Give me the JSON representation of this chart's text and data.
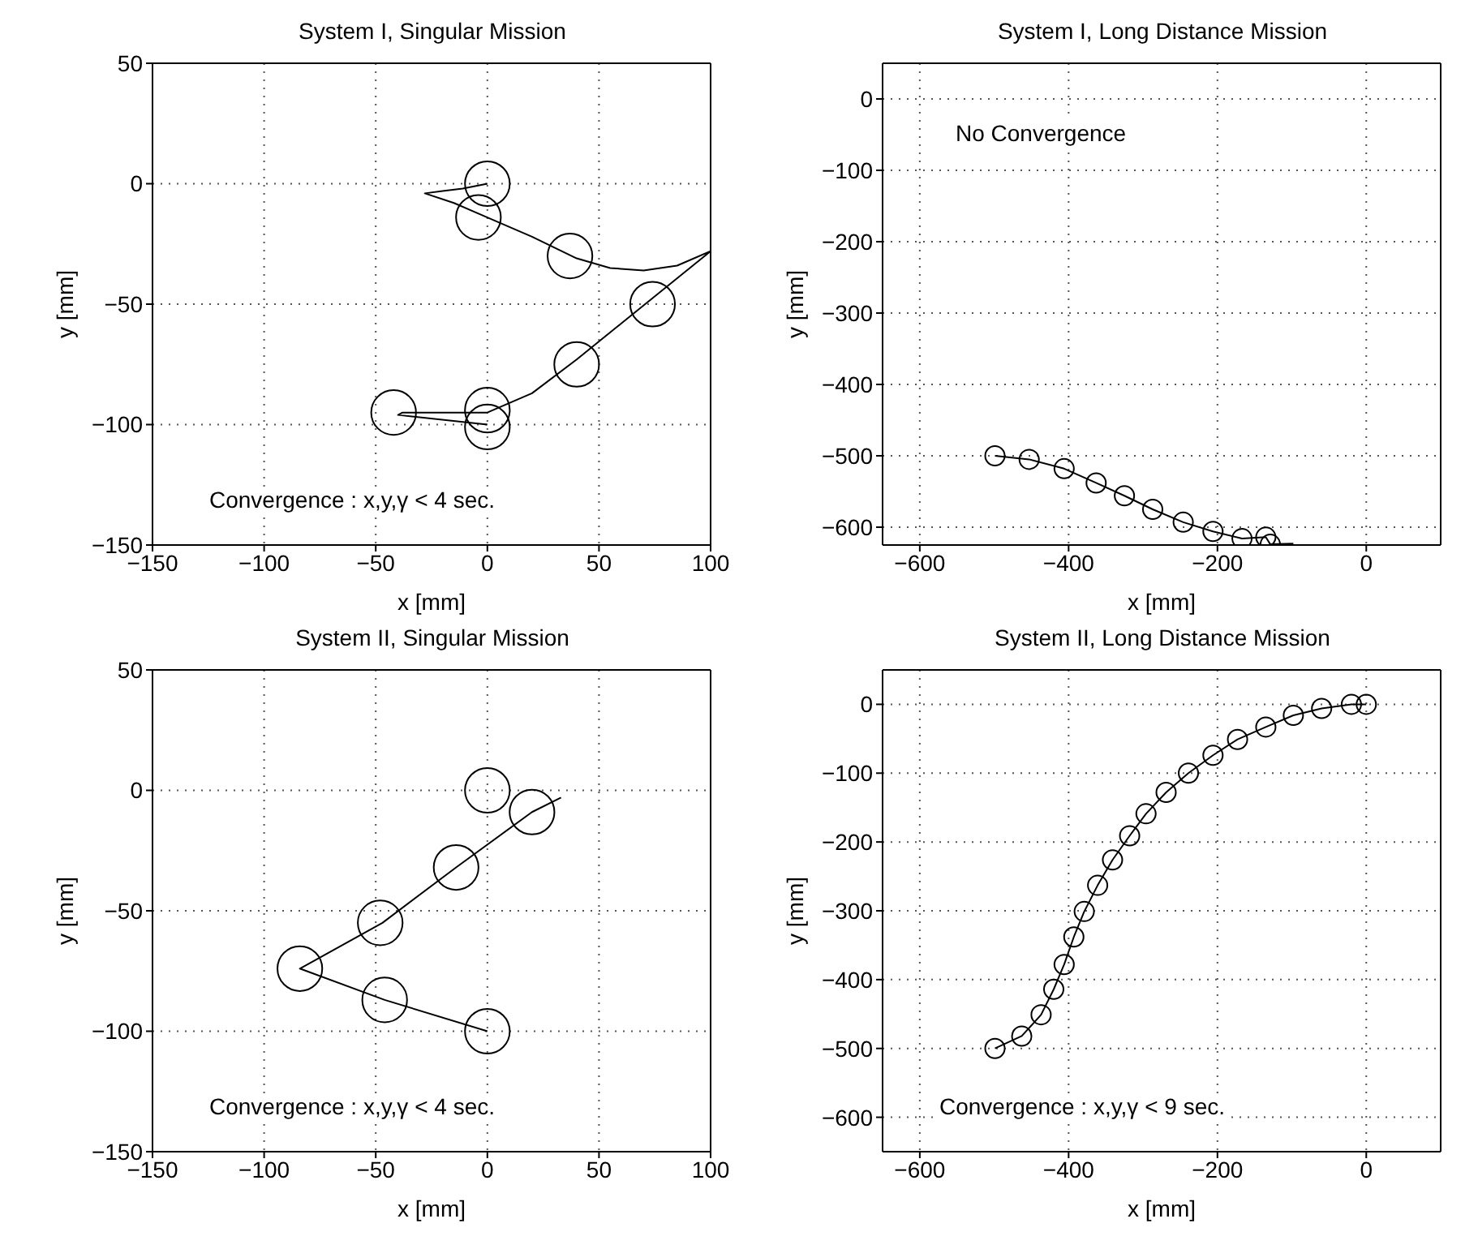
{
  "chart_data": [
    {
      "type": "line",
      "title": "System I, Singular Mission",
      "xlabel": "x [mm]",
      "ylabel": "y [mm]",
      "xlim": [
        -150,
        100
      ],
      "xticks": [
        -150,
        -100,
        -50,
        0,
        50,
        100
      ],
      "ylim": [
        -150,
        50
      ],
      "yticks": [
        -150,
        -100,
        -50,
        0,
        50
      ],
      "grid": true,
      "line_style": "solid",
      "annotations": [
        "Convergence : x,y,γ < 4 sec."
      ],
      "series": [
        {
          "marker": "none",
          "color": "#000000",
          "x": [
            0,
            -40,
            -38,
            0,
            20,
            40,
            60,
            80,
            100,
            85,
            70,
            55,
            40,
            20,
            0,
            -15,
            -28,
            -20,
            -11,
            0
          ],
          "values": [
            -100,
            -96,
            -95,
            -95,
            -87,
            -73,
            -58,
            -43,
            -28,
            -34,
            -36,
            -35,
            -31,
            -22,
            -14,
            -8,
            -4,
            -3,
            -2,
            0
          ]
        },
        {
          "type": "scatter",
          "marker": "circle",
          "color": "#000000",
          "x": [
            0,
            -4,
            37,
            74,
            40,
            0,
            0,
            -42
          ],
          "values": [
            0,
            -14,
            -30,
            -50,
            -75,
            -94,
            -101,
            -95
          ]
        }
      ]
    },
    {
      "type": "line",
      "title": "System I, Long Distance Mission",
      "xlabel": "x [mm]",
      "ylabel": "y [mm]",
      "xlim": [
        -650,
        100
      ],
      "xticks": [
        -600,
        -400,
        -200,
        0
      ],
      "ylim": [
        -625,
        50
      ],
      "yticks": [
        -600,
        -500,
        -400,
        -300,
        -200,
        -100,
        0
      ],
      "grid": true,
      "line_style": "solid",
      "annotations": [
        "No Convergence"
      ],
      "series": [
        {
          "marker": "none",
          "color": "#000000",
          "x": [
            -499,
            -453,
            -406,
            -363,
            -325,
            -287,
            -246,
            -206,
            -167,
            -135,
            -129,
            -98
          ],
          "values": [
            -500,
            -505,
            -518,
            -538,
            -556,
            -575,
            -593,
            -606,
            -616,
            -614,
            -624,
            -623
          ]
        },
        {
          "type": "scatter",
          "marker": "circle",
          "color": "#000000",
          "x": [
            -499,
            -453,
            -406,
            -363,
            -325,
            -287,
            -246,
            -206,
            -167,
            -135,
            -129
          ],
          "values": [
            -500,
            -505,
            -518,
            -538,
            -556,
            -575,
            -593,
            -606,
            -616,
            -614,
            -624
          ]
        }
      ]
    },
    {
      "type": "line",
      "title": "System II, Singular Mission",
      "xlabel": "x [mm]",
      "ylabel": "y [mm]",
      "xlim": [
        -150,
        100
      ],
      "xticks": [
        -150,
        -100,
        -50,
        0,
        50,
        100
      ],
      "ylim": [
        -150,
        50
      ],
      "yticks": [
        -150,
        -100,
        -50,
        0,
        50
      ],
      "grid": true,
      "line_style": "solid",
      "annotations": [
        "Convergence : x,y,γ < 4 sec."
      ],
      "series": [
        {
          "marker": "none",
          "color": "#000000",
          "x": [
            0,
            -46,
            -84,
            -47,
            -14,
            20,
            33
          ],
          "values": [
            -100,
            -87,
            -74,
            -55,
            -32,
            -9,
            -3
          ]
        },
        {
          "type": "scatter",
          "marker": "circle",
          "color": "#000000",
          "x": [
            0,
            20,
            -14,
            -48,
            -84,
            -46,
            0
          ],
          "values": [
            0,
            -9,
            -32,
            -55,
            -74,
            -87,
            -100
          ]
        }
      ]
    },
    {
      "type": "line",
      "title": "System II, Long Distance Mission",
      "xlabel": "x [mm]",
      "ylabel": "y [mm]",
      "xlim": [
        -650,
        100
      ],
      "xticks": [
        -600,
        -400,
        -200,
        0
      ],
      "ylim": [
        -650,
        50
      ],
      "yticks": [
        -600,
        -500,
        -400,
        -300,
        -200,
        -100,
        0
      ],
      "grid": true,
      "line_style": "solid",
      "annotations": [
        "Convergence : x,y,γ < 9 sec."
      ],
      "series": [
        {
          "marker": "none",
          "color": "#000000",
          "x": [
            -499,
            -463,
            -437,
            -420,
            -406,
            -393,
            -379,
            -361,
            -341,
            -318,
            -296,
            -269,
            -239,
            -206,
            -173,
            -135,
            -98,
            -60,
            -20,
            0
          ],
          "values": [
            -500,
            -482,
            -451,
            -414,
            -378,
            -338,
            -301,
            -263,
            -226,
            -191,
            -159,
            -128,
            -100,
            -74,
            -51,
            -33,
            -16,
            -6,
            0,
            0
          ]
        },
        {
          "type": "scatter",
          "marker": "circle",
          "color": "#000000",
          "x": [
            -499,
            -463,
            -437,
            -420,
            -406,
            -393,
            -379,
            -361,
            -341,
            -318,
            -296,
            -269,
            -239,
            -206,
            -173,
            -135,
            -98,
            -60,
            -20,
            0
          ],
          "values": [
            -500,
            -482,
            -451,
            -414,
            -378,
            -338,
            -301,
            -263,
            -226,
            -191,
            -159,
            -128,
            -100,
            -74,
            -51,
            -33,
            -16,
            -6,
            0,
            0
          ]
        }
      ]
    }
  ]
}
